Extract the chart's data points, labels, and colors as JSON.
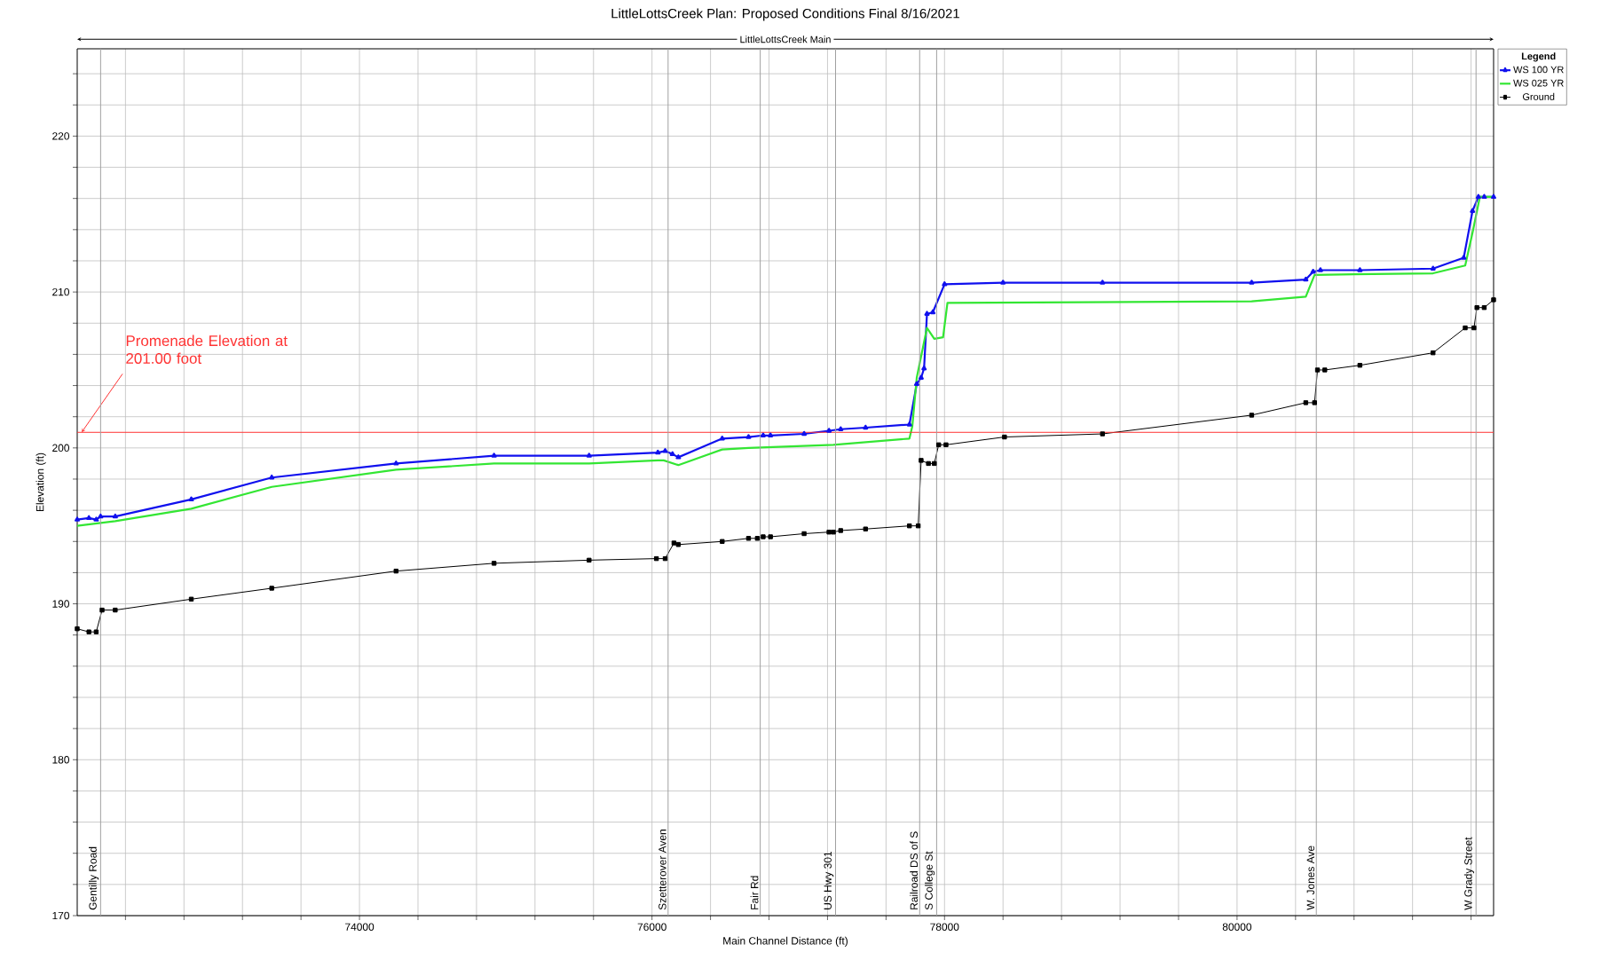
{
  "chart_data": {
    "type": "line",
    "title": "LittleLottsCreek       Plan: Proposed Conditions Final    8/16/2021",
    "subtitle": "LittleLottsCreek Main",
    "xlabel": "Main Channel Distance (ft)",
    "ylabel": "Elevation (ft)",
    "legend_title": "Legend",
    "legend": "top right",
    "grid": true,
    "xlim": [
      72070,
      81754
    ],
    "ylim": [
      170,
      225.6
    ],
    "xticks": [
      {
        "value": 72400,
        "label": null
      },
      {
        "value": 72800,
        "label": null
      },
      {
        "value": 73200,
        "label": null
      },
      {
        "value": 73600,
        "label": null
      },
      74000,
      {
        "value": 74400,
        "label": null
      },
      {
        "value": 74800,
        "label": null
      },
      {
        "value": 75200,
        "label": null
      },
      {
        "value": 75600,
        "label": null
      },
      76000,
      {
        "value": 76400,
        "label": null
      },
      {
        "value": 76800,
        "label": null
      },
      {
        "value": 77200,
        "label": null
      },
      {
        "value": 77600,
        "label": null
      },
      78000,
      {
        "value": 78400,
        "label": null
      },
      {
        "value": 78800,
        "label": null
      },
      {
        "value": 79200,
        "label": null
      },
      {
        "value": 79600,
        "label": null
      },
      80000,
      {
        "value": 80400,
        "label": null
      },
      {
        "value": 80800,
        "label": null
      },
      {
        "value": 81200,
        "label": null
      },
      {
        "value": 81600,
        "label": null
      }
    ],
    "yticks": [
      170,
      {
        "value": 172,
        "label": null
      },
      {
        "value": 174,
        "label": null
      },
      {
        "value": 176,
        "label": null
      },
      {
        "value": 178,
        "label": null
      },
      180,
      {
        "value": 182,
        "label": null
      },
      {
        "value": 184,
        "label": null
      },
      {
        "value": 186,
        "label": null
      },
      {
        "value": 188,
        "label": null
      },
      190,
      {
        "value": 192,
        "label": null
      },
      {
        "value": 194,
        "label": null
      },
      {
        "value": 196,
        "label": null
      },
      {
        "value": 198,
        "label": null
      },
      200,
      {
        "value": 202,
        "label": null
      },
      {
        "value": 204,
        "label": null
      },
      {
        "value": 206,
        "label": null
      },
      {
        "value": 208,
        "label": null
      },
      210,
      {
        "value": 212,
        "label": null
      },
      {
        "value": 214,
        "label": null
      },
      {
        "value": 216,
        "label": null
      },
      {
        "value": 218,
        "label": null
      },
      220,
      {
        "value": 222,
        "label": null
      },
      {
        "value": 224,
        "label": null
      }
    ],
    "series": [
      {
        "name": "WS  100 YR",
        "color": "#1010ee",
        "marker": "triangle",
        "x": [
          72070,
          72150,
          72200,
          72230,
          72330,
          72850,
          73400,
          74250,
          74920,
          75570,
          76040,
          76090,
          76140,
          76180,
          76480,
          76660,
          76760,
          76810,
          77040,
          77210,
          77290,
          77460,
          77760,
          77810,
          77840,
          77860,
          77880,
          77920,
          78000,
          78400,
          79080,
          80100,
          80470,
          80520,
          80570,
          80840,
          81340,
          81550,
          81610,
          81650,
          81690,
          81754
        ],
        "values": [
          195.4,
          195.5,
          195.4,
          195.6,
          195.6,
          196.7,
          198.1,
          199.0,
          199.5,
          199.5,
          199.7,
          199.8,
          199.6,
          199.4,
          200.6,
          200.7,
          200.8,
          200.8,
          200.9,
          201.1,
          201.2,
          201.3,
          201.5,
          204.1,
          204.5,
          205.1,
          208.6,
          208.7,
          210.5,
          210.6,
          210.6,
          210.6,
          210.8,
          211.3,
          211.4,
          211.4,
          211.5,
          212.2,
          215.2,
          216.1,
          216.1,
          216.1
        ]
      },
      {
        "name": "WS  025 YR",
        "color": "#33e633",
        "marker": "none",
        "x": [
          72070,
          72330,
          72850,
          73400,
          74250,
          74920,
          75570,
          76040,
          76080,
          76180,
          76480,
          76660,
          77240,
          77760,
          77780,
          77810,
          77880,
          77930,
          77990,
          78020,
          80100,
          80470,
          80530,
          81340,
          81560,
          81610,
          81660,
          81754
        ],
        "values": [
          195.0,
          195.3,
          196.1,
          197.5,
          198.6,
          199.0,
          199.0,
          199.2,
          199.2,
          198.9,
          199.9,
          200.0,
          200.2,
          200.6,
          201.4,
          204.5,
          207.7,
          207.0,
          207.1,
          209.3,
          209.4,
          209.7,
          211.1,
          211.2,
          211.7,
          213.8,
          216.1,
          216.1
        ]
      },
      {
        "name": "Ground",
        "color": "#000000",
        "marker": "square",
        "x": [
          72070,
          72150,
          72200,
          72240,
          72330,
          72850,
          73400,
          74250,
          74920,
          75570,
          76030,
          76090,
          76150,
          76180,
          76480,
          76660,
          76720,
          76760,
          76810,
          77040,
          77210,
          77240,
          77290,
          77460,
          77760,
          77820,
          77840,
          77890,
          77930,
          77960,
          78010,
          78410,
          79080,
          80100,
          80470,
          80530,
          80550,
          80600,
          80840,
          81340,
          81560,
          81620,
          81640,
          81690,
          81754
        ],
        "values": [
          188.4,
          188.2,
          188.2,
          189.6,
          189.6,
          190.3,
          191.0,
          192.1,
          192.6,
          192.8,
          192.9,
          192.9,
          193.9,
          193.8,
          194.0,
          194.2,
          194.2,
          194.3,
          194.3,
          194.5,
          194.6,
          194.6,
          194.7,
          194.8,
          195.0,
          195.0,
          199.2,
          199.0,
          199.0,
          200.2,
          200.2,
          200.7,
          200.9,
          202.1,
          202.9,
          202.9,
          205.0,
          205.0,
          205.3,
          206.1,
          207.7,
          207.7,
          209.0,
          209.0,
          209.5
        ]
      }
    ],
    "ref_lines": [
      {
        "axis": "y",
        "value": 201,
        "label": "Promenade Elevation at 201.00 foot",
        "color": "#ff3333"
      },
      {
        "axis": "x",
        "value": 72230,
        "label": "Gentilly Road",
        "color": "#a0a0a0"
      },
      {
        "axis": "x",
        "value": 76110,
        "label": "Szetterover Aven",
        "color": "#a0a0a0"
      },
      {
        "axis": "x",
        "value": 76740,
        "label": "Fair Rd",
        "color": "#a0a0a0"
      },
      {
        "axis": "x",
        "value": 77255,
        "label": "US Hwy 301",
        "color": "#a0a0a0"
      },
      {
        "axis": "x",
        "value": 77830,
        "label": "Railroad DS of S",
        "color": "#a0a0a0"
      },
      {
        "axis": "x",
        "value": 77946,
        "label": "S College St",
        "color": "#a0a0a0"
      },
      {
        "axis": "x",
        "value": 80542,
        "label": "W. Jones Ave",
        "color": "#a0a0a0"
      },
      {
        "axis": "x",
        "value": 81634,
        "label": "W Grady Street",
        "color": "#a0a0a0"
      }
    ]
  }
}
